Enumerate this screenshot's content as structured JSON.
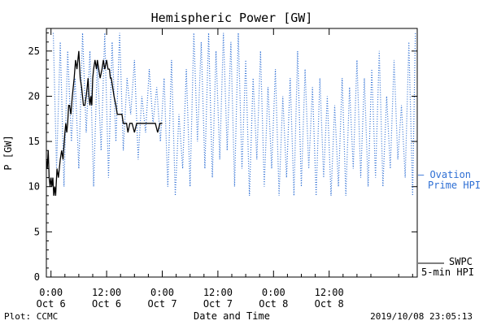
{
  "chart_data": {
    "type": "line",
    "title": "Hemispheric Power [GW]",
    "ylabel": "P [GW]",
    "xlabel": "Date and Time",
    "ylim": [
      0,
      27.5
    ],
    "xlim_hours": [
      -1,
      79
    ],
    "yticks": [
      0,
      5,
      10,
      15,
      20,
      25
    ],
    "xticks": [
      {
        "hour": 0,
        "time": "0:00",
        "date": "Oct 6"
      },
      {
        "hour": 12,
        "time": "12:00",
        "date": "Oct 6"
      },
      {
        "hour": 24,
        "time": "0:00",
        "date": "Oct 7"
      },
      {
        "hour": 36,
        "time": "12:00",
        "date": "Oct 7"
      },
      {
        "hour": 48,
        "time": "0:00",
        "date": "Oct 8"
      },
      {
        "hour": 60,
        "time": "12:00",
        "date": "Oct 8"
      }
    ],
    "series": [
      {
        "name": "SWPC 5-min HPI",
        "color": "#000000",
        "style": "solid",
        "x": [
          -1.0,
          -0.8,
          -0.6,
          -0.4,
          -0.2,
          0,
          0.2,
          0.4,
          0.6,
          0.8,
          1.0,
          1.3,
          1.6,
          2.0,
          2.3,
          2.6,
          3.0,
          3.2,
          3.4,
          3.6,
          3.8,
          4.0,
          4.3,
          4.6,
          5.0,
          5.3,
          5.6,
          6.0,
          6.3,
          6.6,
          7.0,
          7.3,
          7.6,
          7.8,
          8.0,
          8.2,
          8.4,
          8.6,
          8.8,
          9.0,
          9.2,
          9.5,
          9.8,
          10.0,
          10.3,
          10.6,
          11.0,
          11.3,
          11.6,
          12.0,
          12.3,
          12.6,
          12.8,
          13.0,
          13.3,
          13.6,
          14.0,
          14.3,
          14.6,
          15.0,
          15.3,
          15.6,
          16.0,
          16.3,
          16.6,
          17.0,
          17.5,
          18.0,
          18.5,
          19.0,
          19.5,
          20.0,
          20.5,
          21.0,
          21.5,
          22.0,
          22.5,
          23.0,
          23.5,
          24.0
        ],
        "values": [
          13,
          12,
          14,
          11,
          10,
          11,
          10,
          11,
          9,
          10,
          9,
          12,
          11,
          13,
          14,
          13,
          16,
          17,
          16,
          17,
          19,
          19,
          18,
          20,
          22,
          24,
          23,
          25,
          22,
          21,
          19,
          19,
          20,
          21,
          22,
          20,
          19,
          20,
          19,
          22,
          23,
          24,
          23,
          24,
          23,
          22,
          23,
          24,
          23,
          24,
          23,
          23,
          22,
          22,
          21,
          20,
          19,
          18,
          18,
          18,
          18,
          17,
          17,
          17,
          16,
          17,
          17,
          16,
          17,
          17,
          17,
          17,
          17,
          17,
          17,
          17,
          17,
          16,
          17,
          17
        ],
        "legend": [
          "SWPC",
          "5-min HPI"
        ]
      },
      {
        "name": "Ovation Prime HPI",
        "color": "#2e6fd4",
        "style": "dotted",
        "x": [
          0.5,
          1.2,
          2.0,
          2.8,
          3.6,
          4.4,
          5.2,
          6.0,
          6.8,
          7.6,
          8.4,
          9.2,
          10.0,
          10.8,
          11.6,
          12.4,
          13.2,
          14.0,
          14.8,
          15.6,
          16.4,
          17.2,
          18.0,
          18.8,
          19.6,
          20.4,
          21.2,
          22.0,
          22.8,
          23.6,
          24.4,
          25.2,
          26.0,
          26.8,
          27.6,
          28.4,
          29.2,
          30.0,
          30.8,
          31.6,
          32.4,
          33.2,
          34.0,
          34.8,
          35.6,
          36.4,
          37.2,
          38.0,
          38.8,
          39.6,
          40.4,
          41.2,
          42.0,
          42.8,
          43.6,
          44.4,
          45.2,
          46.0,
          46.8,
          47.6,
          48.4,
          49.2,
          50.0,
          50.8,
          51.6,
          52.4,
          53.2,
          54.0,
          54.8,
          55.6,
          56.4,
          57.2,
          58.0,
          58.8,
          59.6,
          60.4,
          61.2,
          62.0,
          62.8,
          63.6,
          64.4,
          65.2,
          66.0,
          66.8,
          67.6,
          68.4,
          69.2,
          70.0,
          70.8,
          71.6,
          72.4,
          73.2,
          74.0,
          74.8,
          75.6,
          76.4,
          77.2,
          78.0,
          78.6
        ],
        "values": [
          27,
          12,
          26,
          10,
          25,
          15,
          22,
          12,
          27,
          16,
          25,
          10,
          24,
          14,
          27,
          11,
          26,
          15,
          27,
          14,
          22,
          18,
          24,
          13,
          20,
          16,
          23,
          17,
          21,
          15,
          22,
          10,
          24,
          9,
          18,
          12,
          23,
          10,
          27,
          15,
          26,
          12,
          27,
          11,
          25,
          13,
          27,
          14,
          26,
          10,
          27,
          12,
          24,
          9,
          22,
          13,
          25,
          10,
          21,
          12,
          23,
          9,
          20,
          11,
          22,
          9,
          25,
          10,
          23,
          12,
          21,
          9,
          22,
          11,
          20,
          9,
          19,
          10,
          22,
          9,
          21,
          12,
          24,
          11,
          22,
          10,
          23,
          11,
          25,
          10,
          20,
          12,
          24,
          13,
          19,
          11,
          26,
          9,
          27
        ],
        "legend": [
          "— Ovation",
          "Prime HPI"
        ]
      }
    ]
  },
  "footer": {
    "plot_credit": "Plot: CCMC",
    "timestamp": "2019/10/08 23:05:13"
  }
}
